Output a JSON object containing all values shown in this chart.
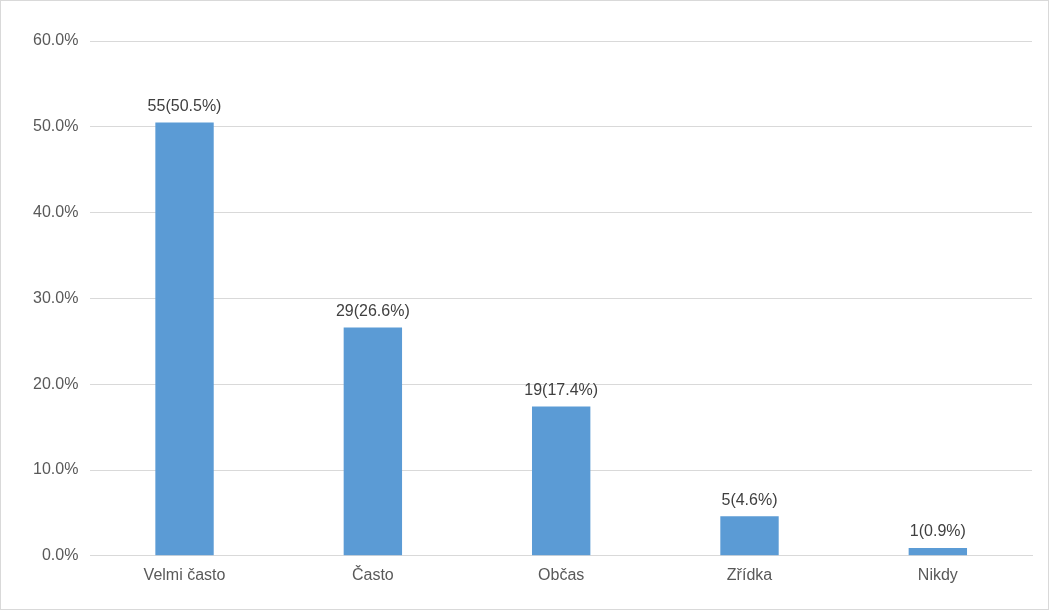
{
  "chart_data": {
    "type": "bar",
    "categories": [
      "Velmi často",
      "Často",
      "Občas",
      "Zřídka",
      "Nikdy"
    ],
    "values": [
      50.5,
      26.6,
      17.4,
      4.6,
      0.9
    ],
    "value_labels": [
      "55(50.5%)",
      "29(26.6%)",
      "19(17.4%)",
      "5(4.6%)",
      "1(0.9%)"
    ],
    "color": "#5b9bd5",
    "ylim": [
      0,
      60
    ],
    "yticks": [
      {
        "value": 0,
        "label": "0.0%"
      },
      {
        "value": 10,
        "label": "10.0%"
      },
      {
        "value": 20,
        "label": "20.0%"
      },
      {
        "value": 30,
        "label": "30.0%"
      },
      {
        "value": 40,
        "label": "40.0%"
      },
      {
        "value": 50,
        "label": "50.0%"
      },
      {
        "value": 60,
        "label": "60.0%"
      }
    ],
    "grid": "y",
    "legend": false
  }
}
